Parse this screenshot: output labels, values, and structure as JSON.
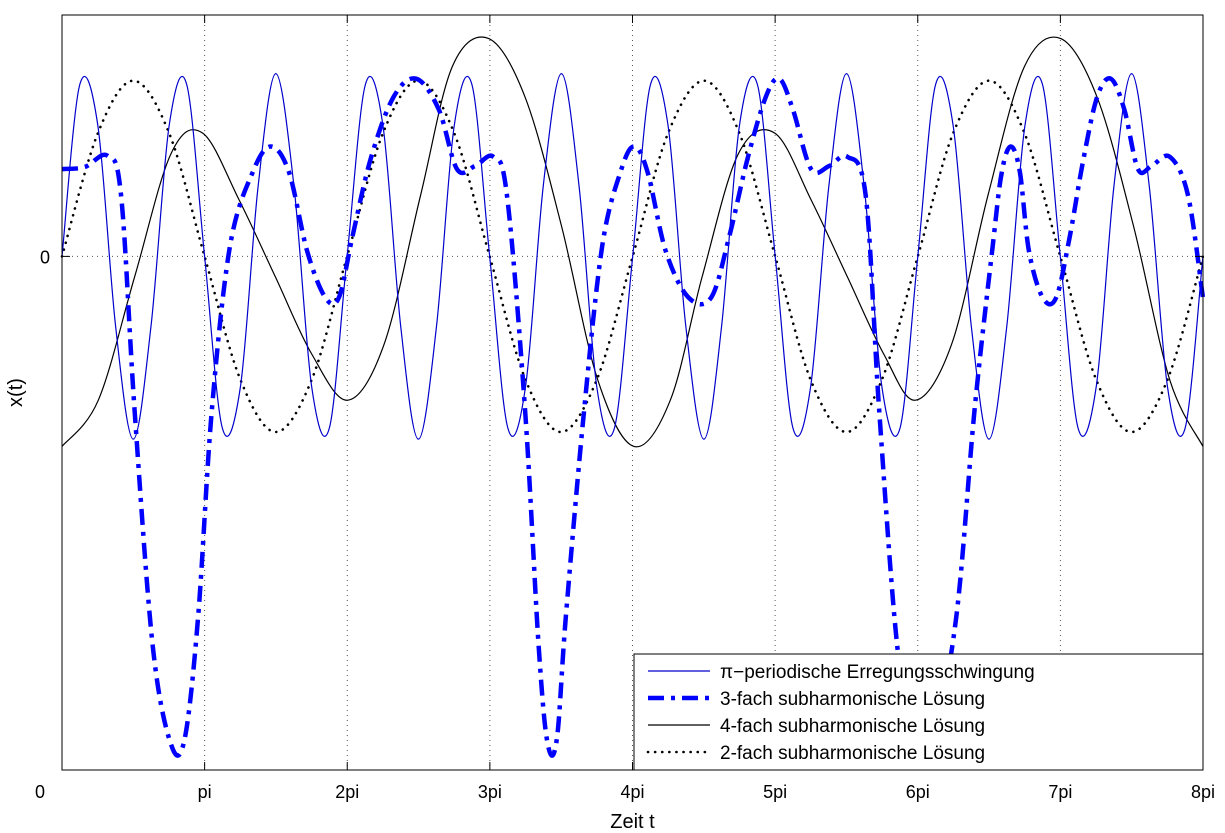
{
  "chart_data": {
    "type": "line",
    "xlabel": "Zeit t",
    "ylabel": "x(t)",
    "xlim": [
      0,
      25.1327
    ],
    "ylim": [
      -5.0,
      2.35
    ],
    "grid": "dotted",
    "x_ticks": [
      {
        "value": 0,
        "label": "0"
      },
      {
        "value": 3.14159,
        "label": "pi"
      },
      {
        "value": 6.28319,
        "label": "2pi"
      },
      {
        "value": 9.42478,
        "label": "3pi"
      },
      {
        "value": 12.56637,
        "label": "4pi"
      },
      {
        "value": 15.70796,
        "label": "5pi"
      },
      {
        "value": 18.84956,
        "label": "6pi"
      },
      {
        "value": 21.99115,
        "label": "7pi"
      },
      {
        "value": 25.13274,
        "label": "8pi"
      }
    ],
    "y_ticks": [
      {
        "value": 0,
        "label": "0"
      }
    ],
    "legend_position": "bottom-right",
    "series": [
      {
        "name": "π−periodische Erregungsschwingung",
        "style": "solid-thin",
        "color": "#0000cc",
        "x": [
          0.0,
          0.39,
          0.79,
          1.18,
          1.57,
          1.96,
          2.36,
          2.75,
          3.14,
          3.53,
          3.93,
          4.32,
          4.71,
          5.11,
          5.5,
          5.89,
          6.28,
          6.68,
          7.07,
          7.46,
          7.85,
          8.25,
          8.64,
          9.03,
          9.42,
          9.82,
          10.21,
          10.6,
          11.0,
          11.39,
          11.78,
          12.17,
          12.57,
          12.96,
          13.35,
          13.74,
          14.14,
          14.53,
          14.92,
          15.32,
          15.71,
          16.1,
          16.49,
          16.89,
          17.28,
          17.67,
          18.06,
          18.46,
          18.85,
          19.24,
          19.63,
          20.03,
          20.42,
          20.81,
          21.21,
          21.6,
          21.99,
          22.38,
          22.78,
          23.17,
          23.56,
          23.95,
          24.35,
          24.74,
          25.13
        ],
        "values": [
          0.0,
          1.67,
          1.27,
          -0.68,
          -1.78,
          -0.68,
          1.27,
          1.67,
          0.0,
          -1.67,
          -1.27,
          0.68,
          1.78,
          0.68,
          -1.27,
          -1.67,
          0.0,
          1.67,
          1.27,
          -0.68,
          -1.78,
          -0.68,
          1.27,
          1.67,
          0.0,
          -1.67,
          -1.27,
          0.68,
          1.78,
          0.68,
          -1.27,
          -1.67,
          0.0,
          1.67,
          1.27,
          -0.68,
          -1.78,
          -0.68,
          1.27,
          1.67,
          0.0,
          -1.67,
          -1.27,
          0.68,
          1.78,
          0.68,
          -1.27,
          -1.67,
          0.0,
          1.67,
          1.27,
          -0.68,
          -1.78,
          -0.68,
          1.27,
          1.67,
          0.0,
          -1.67,
          -1.27,
          0.68,
          1.78,
          0.68,
          -1.27,
          -1.67,
          0.0
        ]
      },
      {
        "name": "3-fach subharmonische Lösung",
        "style": "dashdot-thick",
        "color": "#0000ff",
        "x": [
          0.0,
          0.5,
          1.0,
          1.3,
          1.6,
          2.0,
          2.4,
          2.7,
          3.0,
          3.3,
          3.7,
          4.2,
          4.6,
          5.0,
          5.4,
          5.8,
          6.1,
          6.4,
          6.8,
          7.3,
          7.8,
          8.3,
          8.7,
          9.1,
          9.5,
          9.8,
          10.2,
          10.5,
          10.7,
          10.9,
          11.1,
          11.5,
          11.9,
          12.3,
          12.6,
          12.9,
          13.3,
          13.8,
          14.3,
          14.7,
          15.1,
          15.5,
          15.8,
          16.1,
          16.5,
          16.9,
          17.3,
          17.7,
          18.0,
          18.4,
          18.8,
          19.2,
          19.7,
          20.1,
          20.5,
          20.7,
          20.9,
          21.1,
          21.3,
          21.6,
          21.9,
          22.2,
          22.5,
          22.8,
          23.1,
          23.4,
          23.7,
          24.0,
          24.4,
          24.8,
          25.13
        ],
        "values": [
          0.85,
          0.87,
          0.98,
          0.6,
          -1.5,
          -3.8,
          -4.75,
          -4.7,
          -3.5,
          -1.5,
          0.1,
          0.82,
          1.07,
          0.82,
          0.05,
          -0.4,
          -0.4,
          0.2,
          0.95,
          1.55,
          1.73,
          1.43,
          0.85,
          0.88,
          0.97,
          0.6,
          -1.5,
          -3.8,
          -4.75,
          -4.7,
          -3.5,
          -1.5,
          0.1,
          0.82,
          1.07,
          0.82,
          0.05,
          -0.4,
          -0.4,
          0.2,
          0.95,
          1.55,
          1.73,
          1.43,
          0.85,
          0.88,
          0.97,
          0.6,
          -1.5,
          -3.8,
          -4.75,
          -4.7,
          -3.5,
          -1.5,
          0.1,
          0.82,
          1.07,
          0.82,
          0.05,
          -0.4,
          -0.4,
          0.2,
          0.95,
          1.55,
          1.73,
          1.43,
          0.85,
          0.88,
          0.97,
          0.6,
          -0.4
        ]
      },
      {
        "name": "4-fach subharmonische Lösung",
        "style": "solid-thin",
        "color": "#000000",
        "x": [
          0.0,
          0.8,
          1.6,
          2.4,
          3.1,
          3.9,
          4.7,
          5.5,
          6.3,
          7.1,
          7.9,
          8.6,
          9.4,
          10.2,
          11.0,
          11.8,
          12.6,
          13.4,
          14.1,
          14.9,
          15.7,
          16.5,
          17.3,
          18.1,
          18.8,
          19.6,
          20.4,
          21.2,
          22.0,
          22.8,
          23.6,
          24.4,
          25.13
        ],
        "values": [
          -1.85,
          -1.4,
          -0.2,
          1.0,
          1.2,
          0.55,
          -0.2,
          -0.95,
          -1.4,
          -0.85,
          0.6,
          1.85,
          2.12,
          1.55,
          0.3,
          -1.2,
          -1.85,
          -1.4,
          -0.2,
          1.0,
          1.2,
          0.55,
          -0.2,
          -0.95,
          -1.4,
          -0.85,
          0.6,
          1.85,
          2.12,
          1.55,
          0.3,
          -1.2,
          -1.85
        ]
      },
      {
        "name": "2-fach subharmonische Lösung",
        "style": "dotted-thick",
        "color": "#000000",
        "x": [
          0.0,
          0.79,
          1.57,
          2.36,
          3.14,
          3.93,
          4.71,
          5.5,
          6.28,
          7.07,
          7.85,
          8.64,
          9.42,
          10.21,
          10.99,
          11.78,
          12.57,
          13.35,
          14.14,
          14.92,
          15.71,
          16.49,
          17.28,
          18.06,
          18.85,
          19.63,
          20.42,
          21.2,
          21.99,
          22.78,
          23.56,
          24.35,
          25.13
        ],
        "values": [
          0.0,
          1.2,
          1.71,
          1.2,
          0.0,
          -1.2,
          -1.71,
          -1.2,
          0.0,
          1.2,
          1.71,
          1.2,
          0.0,
          -1.2,
          -1.71,
          -1.2,
          0.0,
          1.2,
          1.71,
          1.2,
          0.0,
          -1.2,
          -1.71,
          -1.2,
          0.0,
          1.2,
          1.71,
          1.2,
          0.0,
          -1.2,
          -1.71,
          -1.2,
          0.0
        ]
      }
    ]
  }
}
